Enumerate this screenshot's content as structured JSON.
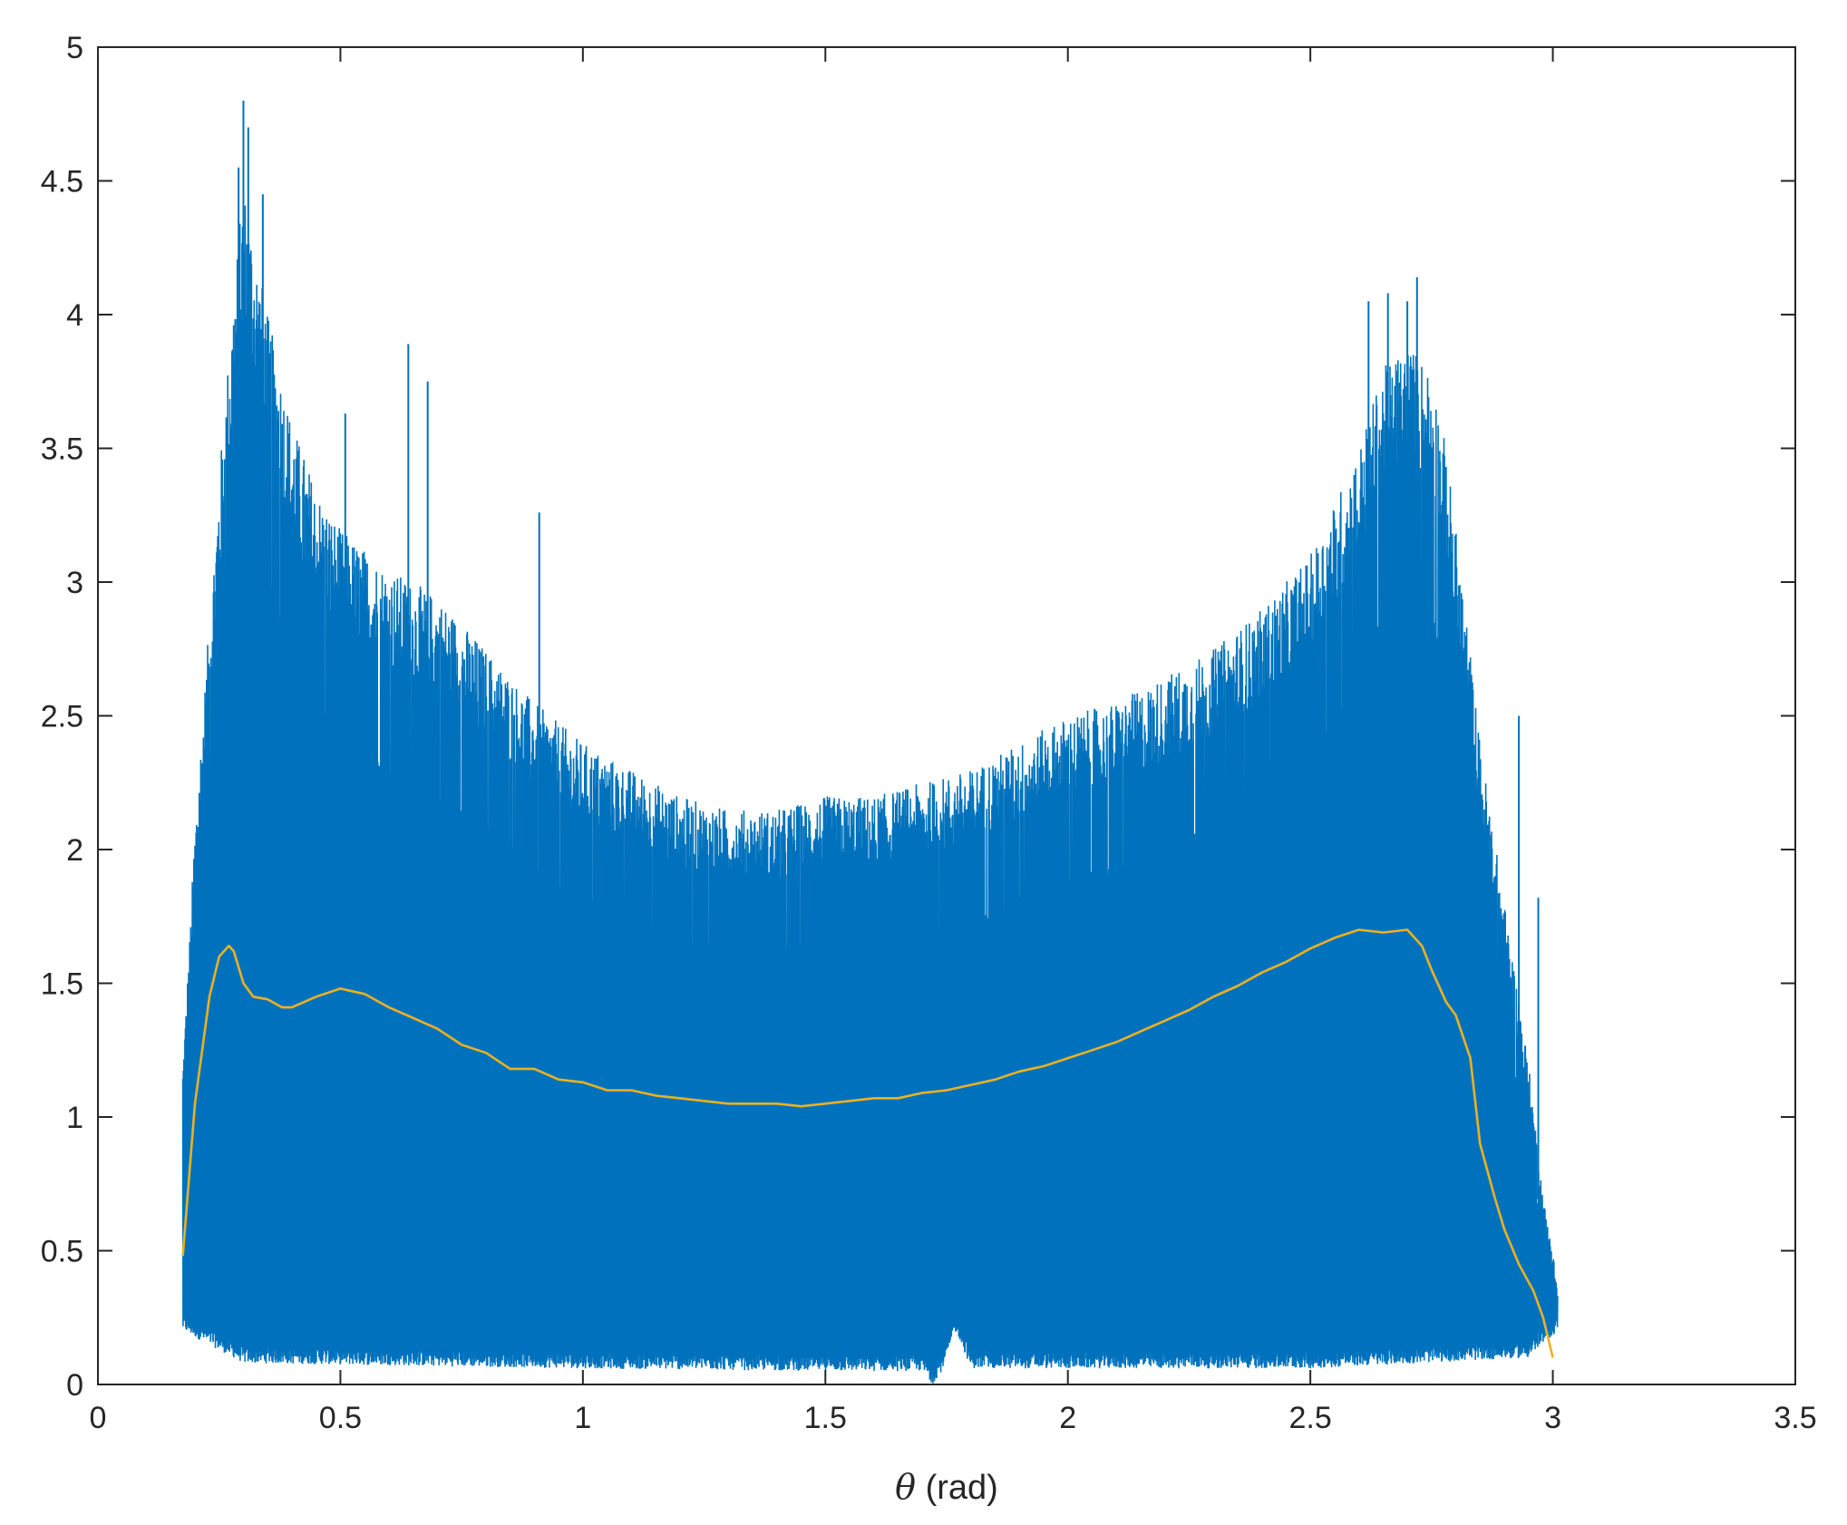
{
  "chart_data": {
    "type": "line",
    "title": "",
    "xlabel": "θ (rad)",
    "ylabel": "",
    "xlim": [
      0,
      3.5
    ],
    "ylim": [
      0,
      5
    ],
    "xticks": [
      "0",
      "0.5",
      "1",
      "1.5",
      "2",
      "2.5",
      "3",
      "3.5"
    ],
    "yticks": [
      "0",
      "0.5",
      "1",
      "1.5",
      "2",
      "2.5",
      "3",
      "3.5",
      "4",
      "4.5",
      "5"
    ],
    "grid": false,
    "legend": "none",
    "series": [
      {
        "style": "dense-noisy-line",
        "color": "#0072BD",
        "x_range": [
          0.175,
          3.01
        ],
        "upper_envelope": {
          "x": [
            0.175,
            0.19,
            0.2,
            0.22,
            0.25,
            0.28,
            0.3,
            0.32,
            0.35,
            0.4,
            0.45,
            0.5,
            0.6,
            0.7,
            0.8,
            0.9,
            1.0,
            1.1,
            1.2,
            1.3,
            1.4,
            1.5,
            1.6,
            1.7,
            1.8,
            1.9,
            2.0,
            2.1,
            2.2,
            2.3,
            2.4,
            2.5,
            2.6,
            2.65,
            2.7,
            2.75,
            2.78,
            2.8,
            2.82,
            2.85,
            2.9,
            2.95,
            2.98,
            3.0,
            3.01
          ],
          "y": [
            1.2,
            1.7,
            2.1,
            2.6,
            3.4,
            4.1,
            4.5,
            4.3,
            4.0,
            3.6,
            3.35,
            3.2,
            3.05,
            2.95,
            2.75,
            2.55,
            2.4,
            2.3,
            2.2,
            2.15,
            2.15,
            2.2,
            2.2,
            2.25,
            2.3,
            2.4,
            2.5,
            2.55,
            2.65,
            2.75,
            2.9,
            3.1,
            3.5,
            3.8,
            3.9,
            3.8,
            3.5,
            3.2,
            2.9,
            2.4,
            1.8,
            1.2,
            0.7,
            0.5,
            0.35
          ]
        },
        "lower_envelope": {
          "x": [
            0.175,
            0.3,
            1.0,
            1.5,
            1.7,
            1.72,
            1.74,
            1.77,
            1.8,
            2.5,
            2.95,
            3.01
          ],
          "y": [
            0.2,
            0.08,
            0.06,
            0.05,
            0.05,
            0.0,
            0.05,
            0.2,
            0.06,
            0.06,
            0.1,
            0.2
          ]
        },
        "spikes": [
          [
            0.3,
            4.8
          ],
          [
            0.31,
            4.7
          ],
          [
            0.29,
            4.55
          ],
          [
            0.34,
            4.45
          ],
          [
            0.64,
            3.89
          ],
          [
            0.68,
            3.75
          ],
          [
            0.51,
            3.63
          ],
          [
            0.91,
            3.26
          ],
          [
            2.72,
            4.14
          ],
          [
            2.66,
            4.08
          ],
          [
            2.62,
            4.05
          ],
          [
            2.7,
            4.05
          ],
          [
            2.93,
            2.5
          ],
          [
            2.97,
            1.82
          ]
        ]
      },
      {
        "style": "smooth-line",
        "color": "#EDB120",
        "x": [
          0.175,
          0.2,
          0.23,
          0.25,
          0.27,
          0.28,
          0.3,
          0.32,
          0.35,
          0.38,
          0.4,
          0.45,
          0.5,
          0.55,
          0.6,
          0.65,
          0.7,
          0.75,
          0.8,
          0.85,
          0.9,
          0.95,
          1.0,
          1.05,
          1.1,
          1.15,
          1.2,
          1.25,
          1.3,
          1.35,
          1.4,
          1.45,
          1.5,
          1.55,
          1.6,
          1.65,
          1.7,
          1.75,
          1.8,
          1.85,
          1.9,
          1.95,
          2.0,
          2.05,
          2.1,
          2.15,
          2.2,
          2.25,
          2.3,
          2.35,
          2.4,
          2.45,
          2.5,
          2.55,
          2.6,
          2.65,
          2.7,
          2.73,
          2.75,
          2.78,
          2.8,
          2.83,
          2.85,
          2.88,
          2.9,
          2.93,
          2.96,
          2.98,
          3.0
        ],
        "y": [
          0.48,
          1.05,
          1.45,
          1.6,
          1.64,
          1.62,
          1.5,
          1.45,
          1.44,
          1.41,
          1.41,
          1.45,
          1.48,
          1.46,
          1.41,
          1.37,
          1.33,
          1.27,
          1.24,
          1.18,
          1.18,
          1.14,
          1.13,
          1.1,
          1.1,
          1.08,
          1.07,
          1.06,
          1.05,
          1.05,
          1.05,
          1.04,
          1.05,
          1.06,
          1.07,
          1.07,
          1.09,
          1.1,
          1.12,
          1.14,
          1.17,
          1.19,
          1.22,
          1.25,
          1.28,
          1.32,
          1.36,
          1.4,
          1.45,
          1.49,
          1.54,
          1.58,
          1.63,
          1.67,
          1.7,
          1.69,
          1.7,
          1.64,
          1.55,
          1.43,
          1.38,
          1.22,
          0.9,
          0.7,
          0.58,
          0.45,
          0.35,
          0.25,
          0.1
        ]
      }
    ]
  }
}
